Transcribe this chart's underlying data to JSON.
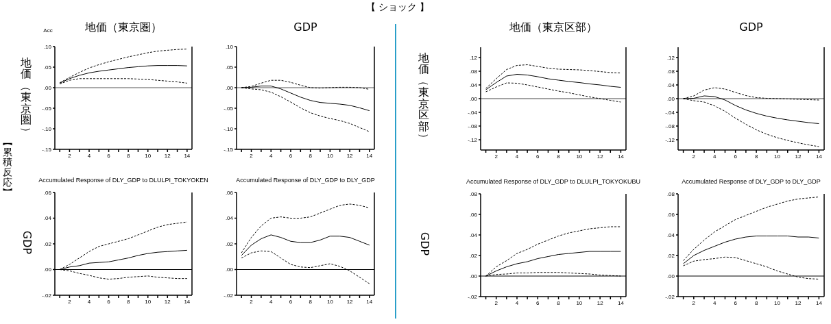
{
  "chart_data": [
    {
      "type": "line",
      "title": "地価（東京圏）",
      "ylabel": "地価（東京圏）",
      "annotations": [
        "【 ショック 】",
        "【累積反応】",
        "Acc"
      ],
      "x": [
        1,
        2,
        3,
        4,
        5,
        6,
        7,
        8,
        9,
        10,
        11,
        12,
        13,
        14
      ],
      "xlim": [
        0.5,
        14.5
      ],
      "xticks": [
        {
          "value": 1,
          "label": null
        },
        2,
        {
          "value": 3,
          "label": null
        },
        4,
        {
          "value": 5,
          "label": null
        },
        6,
        {
          "value": 7,
          "label": null
        },
        8,
        {
          "value": 9,
          "label": null
        },
        10,
        {
          "value": 11,
          "label": null
        },
        12,
        {
          "value": 13,
          "label": null
        },
        14
      ],
      "ylim": [
        -0.15,
        0.1
      ],
      "yticks": [
        {
          "value": -0.15,
          "label": "-.15"
        },
        {
          "value": -0.1,
          "label": "-.10"
        },
        {
          "value": -0.05,
          "label": "-.05"
        },
        {
          "value": 0,
          "label": ".00"
        },
        {
          "value": 0.05,
          "label": ".05"
        },
        {
          "value": 0.1,
          "label": ".10"
        }
      ],
      "ref_lines": [
        {
          "axis": "y",
          "value": 0,
          "color": "#555555"
        }
      ],
      "series": [
        {
          "color": "#000000",
          "line_style": "dashed",
          "values": [
            0.012,
            0.025,
            0.037,
            0.048,
            0.056,
            0.063,
            0.069,
            0.075,
            0.08,
            0.085,
            0.089,
            0.091,
            0.093,
            0.094
          ]
        },
        {
          "color": "#000000",
          "line_style": "solid",
          "values": [
            0.011,
            0.022,
            0.03,
            0.036,
            0.04,
            0.043,
            0.046,
            0.049,
            0.051,
            0.053,
            0.054,
            0.054,
            0.054,
            0.053
          ]
        },
        {
          "color": "#000000",
          "line_style": "dashed",
          "values": [
            0.009,
            0.018,
            0.022,
            0.022,
            0.022,
            0.022,
            0.022,
            0.022,
            0.021,
            0.02,
            0.018,
            0.016,
            0.014,
            0.011
          ]
        }
      ]
    },
    {
      "type": "line",
      "title": "GDP",
      "x": [
        1,
        2,
        3,
        4,
        5,
        6,
        7,
        8,
        9,
        10,
        11,
        12,
        13,
        14
      ],
      "xlim": [
        0.5,
        14.5
      ],
      "xticks": [
        {
          "value": 1,
          "label": null
        },
        2,
        {
          "value": 3,
          "label": null
        },
        4,
        {
          "value": 5,
          "label": null
        },
        6,
        {
          "value": 7,
          "label": null
        },
        8,
        {
          "value": 9,
          "label": null
        },
        10,
        {
          "value": 11,
          "label": null
        },
        12,
        {
          "value": 13,
          "label": null
        },
        14
      ],
      "ylim": [
        -0.15,
        0.1
      ],
      "yticks": [
        {
          "value": -0.15,
          "label": "-.15"
        },
        {
          "value": -0.1,
          "label": "-.10"
        },
        {
          "value": -0.05,
          "label": "-.05"
        },
        {
          "value": 0,
          "label": ".00"
        },
        {
          "value": 0.05,
          "label": ".05"
        },
        {
          "value": 0.1,
          "label": ".10"
        }
      ],
      "ref_lines": [
        {
          "axis": "y",
          "value": 0,
          "color": "#555555"
        }
      ],
      "series": [
        {
          "color": "#000000",
          "line_style": "dashed",
          "values": [
            0,
            0.003,
            0.011,
            0.018,
            0.018,
            0.013,
            0.006,
            0,
            -0.001,
            0,
            0.001,
            0.001,
            0,
            -0.004
          ]
        },
        {
          "color": "#000000",
          "line_style": "solid",
          "values": [
            0,
            0.001,
            0.004,
            0.004,
            -0.003,
            -0.013,
            -0.023,
            -0.031,
            -0.036,
            -0.038,
            -0.04,
            -0.043,
            -0.049,
            -0.056
          ]
        },
        {
          "color": "#000000",
          "line_style": "dashed",
          "values": [
            0,
            -0.003,
            -0.005,
            -0.011,
            -0.022,
            -0.035,
            -0.049,
            -0.061,
            -0.069,
            -0.075,
            -0.08,
            -0.087,
            -0.097,
            -0.107
          ]
        }
      ]
    },
    {
      "type": "line",
      "title": "Accumulated Response of DLY_GDP to DLULPI_TOKYOKEN",
      "ylabel": "GDP",
      "x": [
        1,
        2,
        3,
        4,
        5,
        6,
        7,
        8,
        9,
        10,
        11,
        12,
        13,
        14
      ],
      "xlim": [
        0.5,
        14.5
      ],
      "xticks": [
        {
          "value": 1,
          "label": null
        },
        2,
        {
          "value": 3,
          "label": null
        },
        4,
        {
          "value": 5,
          "label": null
        },
        6,
        {
          "value": 7,
          "label": null
        },
        8,
        {
          "value": 9,
          "label": null
        },
        10,
        {
          "value": 11,
          "label": null
        },
        12,
        {
          "value": 13,
          "label": null
        },
        14
      ],
      "ylim": [
        -0.02,
        0.06
      ],
      "yticks": [
        {
          "value": -0.02,
          "label": "-.02"
        },
        {
          "value": 0,
          "label": ".00"
        },
        {
          "value": 0.02,
          "label": ".02"
        },
        {
          "value": 0.04,
          "label": ".04"
        },
        {
          "value": 0.06,
          "label": ".06"
        }
      ],
      "ref_lines": [
        {
          "axis": "y",
          "value": 0,
          "color": "#000000"
        }
      ],
      "series": [
        {
          "color": "#000000",
          "line_style": "dashed",
          "values": [
            0,
            0.004,
            0.009,
            0.014,
            0.018,
            0.02,
            0.022,
            0.024,
            0.027,
            0.03,
            0.033,
            0.035,
            0.036,
            0.037
          ]
        },
        {
          "color": "#000000",
          "line_style": "solid",
          "values": [
            0,
            0.002,
            0.003,
            0.005,
            0.0055,
            0.006,
            0.0075,
            0.009,
            0.011,
            0.0125,
            0.0135,
            0.014,
            0.0145,
            0.015
          ]
        },
        {
          "color": "#000000",
          "line_style": "dashed",
          "values": [
            0,
            -0.001,
            -0.003,
            -0.0045,
            -0.0065,
            -0.0075,
            -0.007,
            -0.006,
            -0.0055,
            -0.005,
            -0.006,
            -0.0065,
            -0.007,
            -0.007
          ]
        }
      ]
    },
    {
      "type": "line",
      "title": "Accumulated Response of DLY_GDP to DLY_GDP",
      "x": [
        1,
        2,
        3,
        4,
        5,
        6,
        7,
        8,
        9,
        10,
        11,
        12,
        13,
        14
      ],
      "xlim": [
        0.5,
        14.5
      ],
      "xticks": [
        {
          "value": 1,
          "label": null
        },
        2,
        {
          "value": 3,
          "label": null
        },
        4,
        {
          "value": 5,
          "label": null
        },
        6,
        {
          "value": 7,
          "label": null
        },
        8,
        {
          "value": 9,
          "label": null
        },
        10,
        {
          "value": 11,
          "label": null
        },
        12,
        {
          "value": 13,
          "label": null
        },
        14
      ],
      "ylim": [
        -0.02,
        0.06
      ],
      "yticks": [
        {
          "value": -0.02,
          "label": "-.02"
        },
        {
          "value": 0,
          "label": ".00"
        },
        {
          "value": 0.02,
          "label": ".02"
        },
        {
          "value": 0.04,
          "label": ".04"
        },
        {
          "value": 0.06,
          "label": ".06"
        }
      ],
      "ref_lines": [
        {
          "axis": "y",
          "value": 0,
          "color": "#000000"
        }
      ],
      "series": [
        {
          "color": "#000000",
          "line_style": "dashed",
          "values": [
            0.013,
            0.025,
            0.034,
            0.04,
            0.041,
            0.04,
            0.04,
            0.041,
            0.044,
            0.047,
            0.05,
            0.051,
            0.05,
            0.048
          ]
        },
        {
          "color": "#000000",
          "line_style": "solid",
          "values": [
            0.011,
            0.019,
            0.024,
            0.027,
            0.025,
            0.022,
            0.021,
            0.021,
            0.023,
            0.026,
            0.026,
            0.025,
            0.022,
            0.019
          ]
        },
        {
          "color": "#000000",
          "line_style": "dashed",
          "values": [
            0.009,
            0.013,
            0.0145,
            0.014,
            0.009,
            0.004,
            0.002,
            0.0015,
            0.003,
            0.0045,
            0.0025,
            -0.001,
            -0.006,
            -0.011
          ]
        }
      ]
    },
    {
      "type": "line",
      "title": "地価（東京区部）",
      "ylabel": "地価（東京区部）",
      "x": [
        1,
        2,
        3,
        4,
        5,
        6,
        7,
        8,
        9,
        10,
        11,
        12,
        13,
        14
      ],
      "xlim": [
        0.5,
        14.5
      ],
      "xticks": [
        {
          "value": 1,
          "label": null
        },
        2,
        {
          "value": 3,
          "label": null
        },
        4,
        {
          "value": 5,
          "label": null
        },
        6,
        {
          "value": 7,
          "label": null
        },
        8,
        {
          "value": 9,
          "label": null
        },
        10,
        {
          "value": 11,
          "label": null
        },
        12,
        {
          "value": 13,
          "label": null
        },
        14
      ],
      "ylim": [
        -0.15,
        0.15
      ],
      "yticks": [
        {
          "value": -0.12,
          "label": "-.12"
        },
        {
          "value": -0.08,
          "label": "-.08"
        },
        {
          "value": -0.04,
          "label": "-.04"
        },
        {
          "value": 0,
          "label": ".00"
        },
        {
          "value": 0.04,
          "label": ".04"
        },
        {
          "value": 0.08,
          "label": ".08"
        },
        {
          "value": 0.12,
          "label": ".12"
        }
      ],
      "ref_lines": [
        {
          "axis": "y",
          "value": 0,
          "color": "#444444"
        }
      ],
      "series": [
        {
          "color": "#000000",
          "line_style": "dashed",
          "values": [
            0.03,
            0.058,
            0.085,
            0.097,
            0.099,
            0.094,
            0.089,
            0.086,
            0.085,
            0.084,
            0.082,
            0.079,
            0.076,
            0.075
          ]
        },
        {
          "color": "#000000",
          "line_style": "solid",
          "values": [
            0.026,
            0.047,
            0.066,
            0.071,
            0.069,
            0.064,
            0.058,
            0.054,
            0.05,
            0.047,
            0.043,
            0.04,
            0.036,
            0.033
          ]
        },
        {
          "color": "#000000",
          "line_style": "dashed",
          "values": [
            0.02,
            0.034,
            0.046,
            0.045,
            0.04,
            0.034,
            0.028,
            0.022,
            0.017,
            0.011,
            0.005,
            0,
            -0.005,
            -0.01
          ]
        }
      ]
    },
    {
      "type": "line",
      "title": "GDP",
      "x": [
        1,
        2,
        3,
        4,
        5,
        6,
        7,
        8,
        9,
        10,
        11,
        12,
        13,
        14
      ],
      "xlim": [
        0.5,
        14.5
      ],
      "xticks": [
        {
          "value": 1,
          "label": null
        },
        2,
        {
          "value": 3,
          "label": null
        },
        4,
        {
          "value": 5,
          "label": null
        },
        6,
        {
          "value": 7,
          "label": null
        },
        8,
        {
          "value": 9,
          "label": null
        },
        10,
        {
          "value": 11,
          "label": null
        },
        12,
        {
          "value": 13,
          "label": null
        },
        14
      ],
      "ylim": [
        -0.15,
        0.15
      ],
      "yticks": [
        {
          "value": -0.12,
          "label": "-.12"
        },
        {
          "value": -0.08,
          "label": "-.08"
        },
        {
          "value": -0.04,
          "label": "-.04"
        },
        {
          "value": 0,
          "label": ".00"
        },
        {
          "value": 0.04,
          "label": ".04"
        },
        {
          "value": 0.08,
          "label": ".08"
        },
        {
          "value": 0.12,
          "label": ".12"
        }
      ],
      "ref_lines": [
        {
          "axis": "y",
          "value": 0,
          "color": "#444444"
        }
      ],
      "series": [
        {
          "color": "#000000",
          "line_style": "dashed",
          "values": [
            0,
            0.008,
            0.025,
            0.032,
            0.028,
            0.018,
            0.009,
            0.003,
            0.001,
            0,
            -0.001,
            -0.002,
            -0.003,
            -0.004
          ]
        },
        {
          "color": "#000000",
          "line_style": "solid",
          "values": [
            0,
            0.001,
            0.008,
            0.006,
            -0.004,
            -0.02,
            -0.033,
            -0.043,
            -0.051,
            -0.057,
            -0.062,
            -0.066,
            -0.07,
            -0.073
          ]
        },
        {
          "color": "#000000",
          "line_style": "dashed",
          "values": [
            0,
            -0.006,
            -0.01,
            -0.021,
            -0.037,
            -0.057,
            -0.075,
            -0.091,
            -0.104,
            -0.114,
            -0.122,
            -0.129,
            -0.135,
            -0.14
          ]
        }
      ]
    },
    {
      "type": "line",
      "title": "Accumulated Response of DLY_GDP to DLULPI_TOKYOKUBU",
      "ylabel": "GDP",
      "x": [
        1,
        2,
        3,
        4,
        5,
        6,
        7,
        8,
        9,
        10,
        11,
        12,
        13,
        14
      ],
      "xlim": [
        0.5,
        14.5
      ],
      "xticks": [
        {
          "value": 1,
          "label": null
        },
        2,
        {
          "value": 3,
          "label": null
        },
        4,
        {
          "value": 5,
          "label": null
        },
        6,
        {
          "value": 7,
          "label": null
        },
        8,
        {
          "value": 9,
          "label": null
        },
        10,
        {
          "value": 11,
          "label": null
        },
        12,
        {
          "value": 13,
          "label": null
        },
        14
      ],
      "ylim": [
        -0.02,
        0.08
      ],
      "yticks": [
        {
          "value": -0.02,
          "label": "-.02"
        },
        {
          "value": 0,
          "label": ".00"
        },
        {
          "value": 0.02,
          "label": ".02"
        },
        {
          "value": 0.04,
          "label": ".04"
        },
        {
          "value": 0.06,
          "label": ".06"
        },
        {
          "value": 0.08,
          "label": ".08"
        }
      ],
      "ref_lines": [
        {
          "axis": "y",
          "value": 0,
          "color": "#000000"
        }
      ],
      "series": [
        {
          "color": "#000000",
          "line_style": "dashed",
          "values": [
            0,
            0.009,
            0.015,
            0.022,
            0.026,
            0.031,
            0.035,
            0.039,
            0.042,
            0.044,
            0.046,
            0.047,
            0.048,
            0.048
          ]
        },
        {
          "color": "#000000",
          "line_style": "solid",
          "values": [
            0,
            0.005,
            0.009,
            0.012,
            0.014,
            0.017,
            0.019,
            0.021,
            0.022,
            0.023,
            0.024,
            0.024,
            0.024,
            0.024
          ]
        },
        {
          "color": "#000000",
          "line_style": "dashed",
          "values": [
            0,
            0.0015,
            0.002,
            0.003,
            0.003,
            0.0035,
            0.0035,
            0.0035,
            0.003,
            0.0025,
            0.002,
            0.001,
            0.0005,
            0
          ]
        }
      ]
    },
    {
      "type": "line",
      "title": "Accumulated Response of DLY_GDP to DLY_GDP",
      "x": [
        1,
        2,
        3,
        4,
        5,
        6,
        7,
        8,
        9,
        10,
        11,
        12,
        13,
        14
      ],
      "xlim": [
        0.5,
        14.5
      ],
      "xticks": [
        {
          "value": 1,
          "label": null
        },
        2,
        {
          "value": 3,
          "label": null
        },
        4,
        {
          "value": 5,
          "label": null
        },
        6,
        {
          "value": 7,
          "label": null
        },
        8,
        {
          "value": 9,
          "label": null
        },
        10,
        {
          "value": 11,
          "label": null
        },
        12,
        {
          "value": 13,
          "label": null
        },
        14
      ],
      "ylim": [
        -0.02,
        0.08
      ],
      "yticks": [
        {
          "value": -0.02,
          "label": "-.02"
        },
        {
          "value": 0,
          "label": ".00"
        },
        {
          "value": 0.02,
          "label": ".02"
        },
        {
          "value": 0.04,
          "label": ".04"
        },
        {
          "value": 0.06,
          "label": ".06"
        },
        {
          "value": 0.08,
          "label": ".08"
        }
      ],
      "ref_lines": [
        {
          "axis": "y",
          "value": 0,
          "color": "#000000"
        }
      ],
      "series": [
        {
          "color": "#000000",
          "line_style": "dashed",
          "values": [
            0.015,
            0.026,
            0.035,
            0.043,
            0.049,
            0.055,
            0.059,
            0.063,
            0.067,
            0.07,
            0.073,
            0.075,
            0.076,
            0.077
          ]
        },
        {
          "color": "#000000",
          "line_style": "solid",
          "values": [
            0.012,
            0.02,
            0.025,
            0.029,
            0.033,
            0.036,
            0.038,
            0.039,
            0.039,
            0.039,
            0.039,
            0.038,
            0.038,
            0.037
          ]
        },
        {
          "color": "#000000",
          "line_style": "dashed",
          "values": [
            0.01,
            0.0145,
            0.016,
            0.017,
            0.0185,
            0.018,
            0.015,
            0.012,
            0.009,
            0.005,
            0.002,
            -0.001,
            -0.0025,
            -0.003
          ]
        }
      ]
    }
  ]
}
